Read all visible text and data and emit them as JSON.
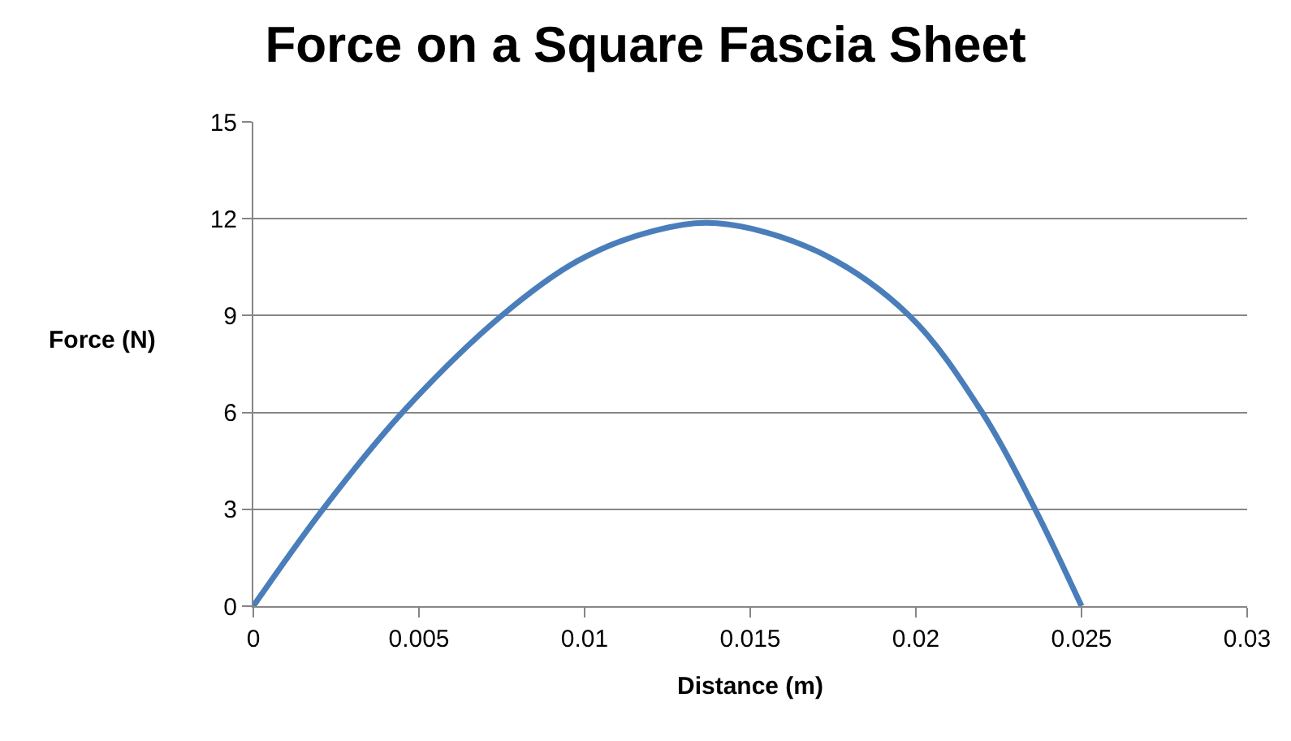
{
  "chart_data": {
    "type": "line",
    "title": "Force on a Square Fascia Sheet",
    "xlabel": "Distance (m)",
    "ylabel": "Force (N)",
    "x": [
      0,
      0.0021,
      0.0045,
      0.0075,
      0.0098,
      0.012,
      0.014,
      0.017,
      0.0198,
      0.022,
      0.0236,
      0.025
    ],
    "series": [
      {
        "color": "#4a7ebb",
        "values": [
          0,
          3,
          6,
          9,
          10.7,
          11.6,
          11.86,
          11.0,
          9,
          6,
          3,
          0
        ]
      }
    ],
    "xlim": [
      0,
      0.03
    ],
    "xticks": [
      0,
      0.005,
      0.01,
      0.015,
      0.02,
      0.025,
      0.03
    ],
    "ylim": [
      0,
      15
    ],
    "yticks": [
      0,
      3,
      6,
      9,
      12,
      15
    ],
    "grid": "y",
    "marker": "none",
    "line_style": "solid"
  }
}
